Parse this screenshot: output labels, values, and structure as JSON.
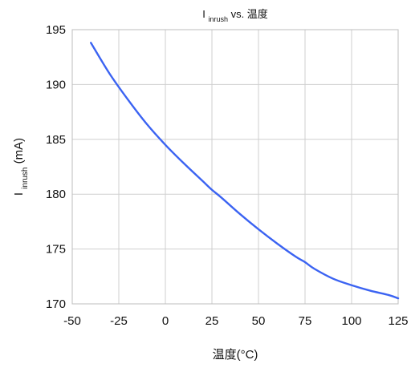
{
  "chart_data": {
    "type": "line",
    "title": {
      "main": "I",
      "sub": "inrush",
      "suffix": " vs. 温度"
    },
    "xlabel": "温度(°C)",
    "ylabel": {
      "main": "I",
      "sub": "inrush",
      "suffix": " (mA)"
    },
    "xlim": [
      -50,
      125
    ],
    "ylim": [
      170,
      195
    ],
    "xticks": [
      -50,
      -25,
      0,
      25,
      50,
      75,
      100,
      125
    ],
    "yticks": [
      170,
      175,
      180,
      185,
      190,
      195
    ],
    "grid": true,
    "colors": {
      "series": "#3b63f2",
      "grid": "#cfcfcf",
      "frame": "#bdbdbd"
    },
    "series": [
      {
        "x": [
          -40,
          -30,
          -20,
          -10,
          0,
          10,
          20,
          25,
          30,
          40,
          50,
          60,
          70,
          75,
          80,
          90,
          100,
          110,
          120,
          125
        ],
        "y": [
          193.8,
          191.0,
          188.6,
          186.4,
          184.5,
          182.8,
          181.2,
          180.4,
          179.7,
          178.2,
          176.8,
          175.5,
          174.3,
          173.8,
          173.2,
          172.3,
          171.7,
          171.2,
          170.8,
          170.5
        ]
      }
    ]
  }
}
